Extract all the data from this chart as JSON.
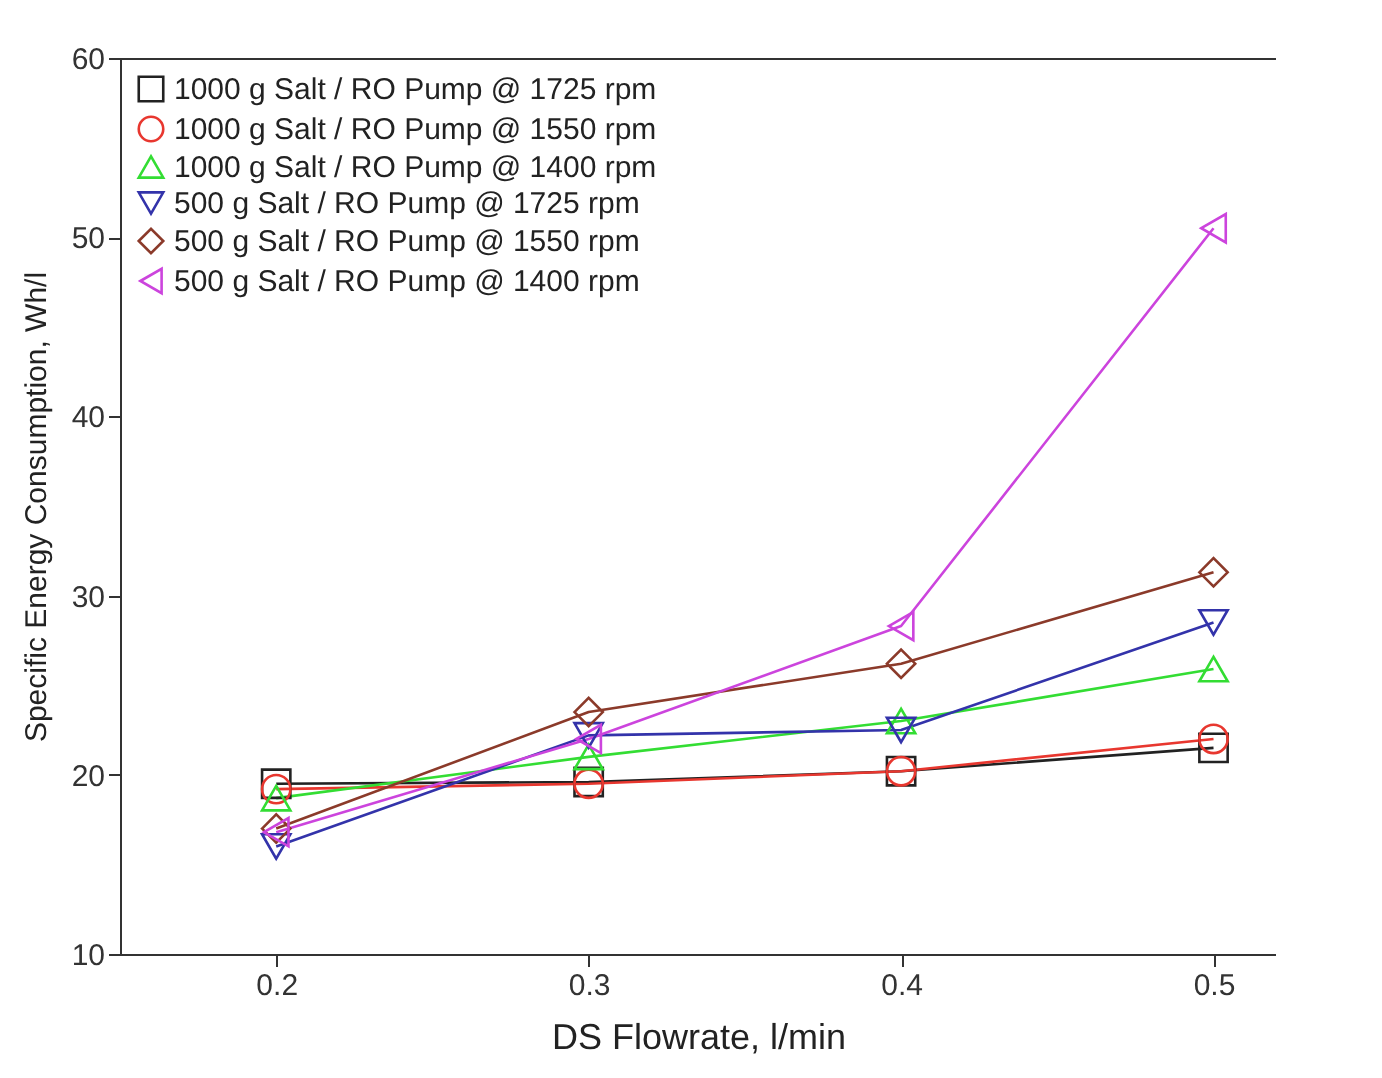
{
  "chart_data": {
    "type": "line",
    "xlabel": "DS Flowrate, l/min",
    "ylabel": "Specific Energy Consumption, Wh/l",
    "x": [
      0.2,
      0.3,
      0.4,
      0.5
    ],
    "xlim": [
      0.15,
      0.52
    ],
    "xticks": [
      0.2,
      0.3,
      0.4,
      0.5
    ],
    "ylim": [
      10,
      60
    ],
    "yticks": [
      10,
      20,
      30,
      40,
      50,
      60
    ],
    "grid": false,
    "legend": "top left",
    "line_style": "solid",
    "series": [
      {
        "name": "1000 g Salt / RO Pump @ 1725 rpm",
        "color": "#222222",
        "marker": "square",
        "values": [
          19.5,
          19.6,
          20.2,
          21.5
        ]
      },
      {
        "name": "1000 g Salt / RO Pump @ 1550 rpm",
        "color": "#e8372f",
        "marker": "circle",
        "values": [
          19.2,
          19.5,
          20.2,
          22
        ]
      },
      {
        "name": "1000 g Salt / RO Pump @ 1400 rpm",
        "color": "#33dd33",
        "marker": "triangle",
        "values": [
          18.7,
          21,
          23,
          25.9
        ]
      },
      {
        "name": "500 g Salt / RO Pump @ 1725 rpm",
        "color": "#3333aa",
        "marker": "triangle-down",
        "values": [
          16,
          22.2,
          22.5,
          28.5
        ]
      },
      {
        "name": "500 g Salt / RO Pump @ 1550 rpm",
        "color": "#8b3a2a",
        "marker": "diamond",
        "values": [
          17,
          23.5,
          26.2,
          31.3
        ]
      },
      {
        "name": "500 g Salt / RO Pump @ 1400 rpm",
        "color": "#cc44dd",
        "marker": "triangle-left",
        "values": [
          16.8,
          22,
          28.3,
          50.5
        ]
      }
    ]
  }
}
